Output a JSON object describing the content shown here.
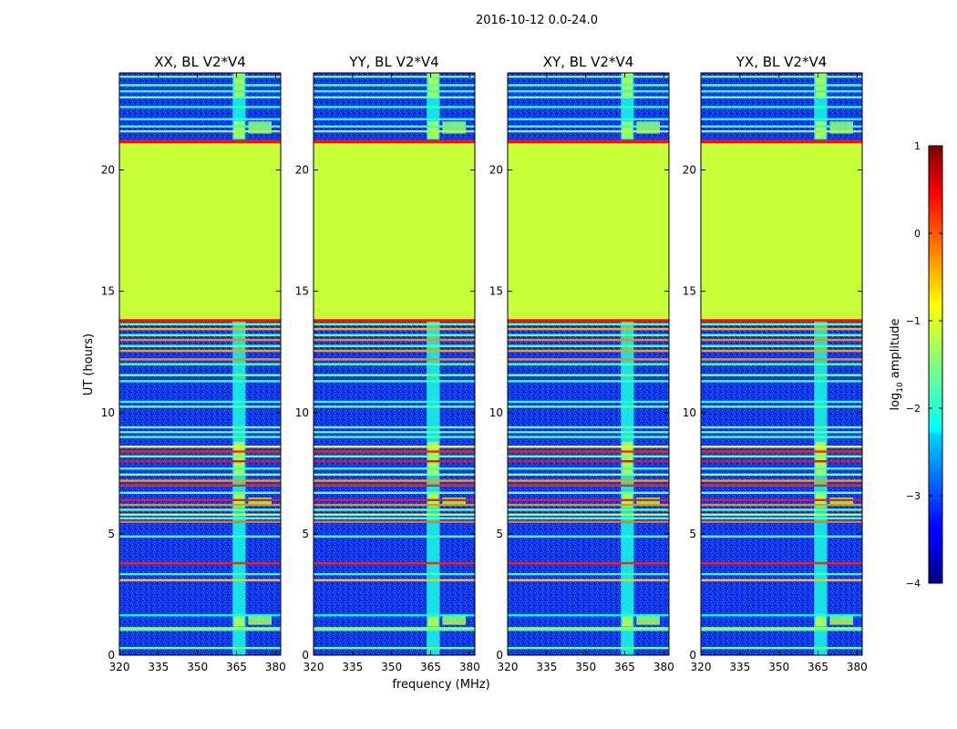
{
  "suptitle": "2016-10-12 0.0-24.0",
  "chart_data": {
    "type": "heatmap",
    "title": "2016-10-12 0.0-24.0",
    "xlabel": "frequency (MHz)",
    "ylabel": "UT (hours)",
    "xlim": [
      320,
      382
    ],
    "ylim": [
      0,
      24
    ],
    "xticks": [
      320,
      335,
      350,
      365,
      380
    ],
    "yticks": [
      0,
      5,
      10,
      15,
      20
    ],
    "panels": [
      {
        "title": "XX, BL V2*V4"
      },
      {
        "title": "YY, BL V2*V4"
      },
      {
        "title": "XY, BL V2*V4"
      },
      {
        "title": "YX, BL V2*V4"
      }
    ],
    "colorbar": {
      "label_prefix": "log",
      "label_sub": "10",
      "label_suffix": " amplitude",
      "range": [
        -4,
        1
      ],
      "ticks": [
        1,
        0,
        -1,
        -2,
        -3,
        -4
      ],
      "tick_labels": [
        "1",
        "0",
        "−1",
        "−2",
        "−3",
        "−4"
      ],
      "colormap": "jet"
    },
    "background_level": -2.9,
    "blocks": [
      {
        "name": "flagged gap",
        "t0": 13.8,
        "t1": 21.2,
        "level": -1.15
      },
      {
        "name": "flag edge",
        "t0": 21.1,
        "t1": 21.25,
        "level": 0.3
      },
      {
        "name": "flag edge",
        "t0": 13.75,
        "t1": 13.85,
        "level": 0.3
      }
    ],
    "rfi_lines": [
      {
        "t": 0.3,
        "level": -1.6
      },
      {
        "t": 1.05,
        "level": -1.8
      },
      {
        "t": 1.12,
        "level": -1.4
      },
      {
        "t": 1.65,
        "level": -2.1
      },
      {
        "t": 3.1,
        "level": -0.6
      },
      {
        "t": 3.35,
        "level": -1.8
      },
      {
        "t": 3.8,
        "level": 0.2
      },
      {
        "t": 4.9,
        "level": -1.8
      },
      {
        "t": 5.5,
        "level": -0.2
      },
      {
        "t": 5.65,
        "level": -1.7
      },
      {
        "t": 5.8,
        "level": -1.1
      },
      {
        "t": 6.0,
        "level": -1.6
      },
      {
        "t": 6.2,
        "level": -0.3
      },
      {
        "t": 6.4,
        "level": 0.25
      },
      {
        "t": 6.7,
        "level": -1.6
      },
      {
        "t": 7.0,
        "level": 0.2
      },
      {
        "t": 7.2,
        "level": -0.4
      },
      {
        "t": 7.45,
        "level": -1.4
      },
      {
        "t": 7.7,
        "level": -1.8
      },
      {
        "t": 8.0,
        "level": 0.3
      },
      {
        "t": 8.2,
        "level": -1.5
      },
      {
        "t": 8.4,
        "level": 0.2
      },
      {
        "t": 8.6,
        "level": -0.9
      },
      {
        "t": 9.0,
        "level": -1.8
      },
      {
        "t": 9.2,
        "level": -1.7
      },
      {
        "t": 9.4,
        "level": -1.6
      },
      {
        "t": 10.25,
        "level": -1.6
      },
      {
        "t": 10.45,
        "level": -1.9
      },
      {
        "t": 11.3,
        "level": -1.8
      },
      {
        "t": 11.55,
        "level": -1.5
      },
      {
        "t": 12.0,
        "level": -1.7
      },
      {
        "t": 12.2,
        "level": -0.3
      },
      {
        "t": 12.55,
        "level": -0.4
      },
      {
        "t": 12.75,
        "level": -1.6
      },
      {
        "t": 13.0,
        "level": -0.3
      },
      {
        "t": 13.2,
        "level": -1.6
      },
      {
        "t": 13.45,
        "level": -0.5
      },
      {
        "t": 13.65,
        "level": -1.6
      },
      {
        "t": 21.6,
        "level": -1.4
      },
      {
        "t": 21.8,
        "level": -1.8
      },
      {
        "t": 22.1,
        "level": -2.0
      },
      {
        "t": 22.6,
        "level": -1.9
      },
      {
        "t": 23.0,
        "level": -1.6
      },
      {
        "t": 23.25,
        "level": -1.9
      },
      {
        "t": 23.5,
        "level": -1.7
      },
      {
        "t": 23.85,
        "level": -1.6
      }
    ],
    "rfi_columns": [
      {
        "f0": 363.5,
        "f1": 368.5,
        "level": -2.0,
        "segments": [
          [
            0.0,
            13.8
          ],
          [
            21.2,
            24.0
          ]
        ]
      },
      {
        "f0": 364.0,
        "f1": 368.0,
        "level": -1.2,
        "segments": [
          [
            1.2,
            1.7
          ],
          [
            6.1,
            6.7
          ],
          [
            7.4,
            8.8
          ],
          [
            21.3,
            22.0
          ],
          [
            23.0,
            24.0
          ]
        ]
      },
      {
        "f0": 369.5,
        "f1": 378.5,
        "level": -1.3,
        "segments": [
          [
            1.25,
            1.65
          ],
          [
            6.2,
            6.5
          ],
          [
            21.5,
            22.0
          ]
        ]
      }
    ]
  }
}
